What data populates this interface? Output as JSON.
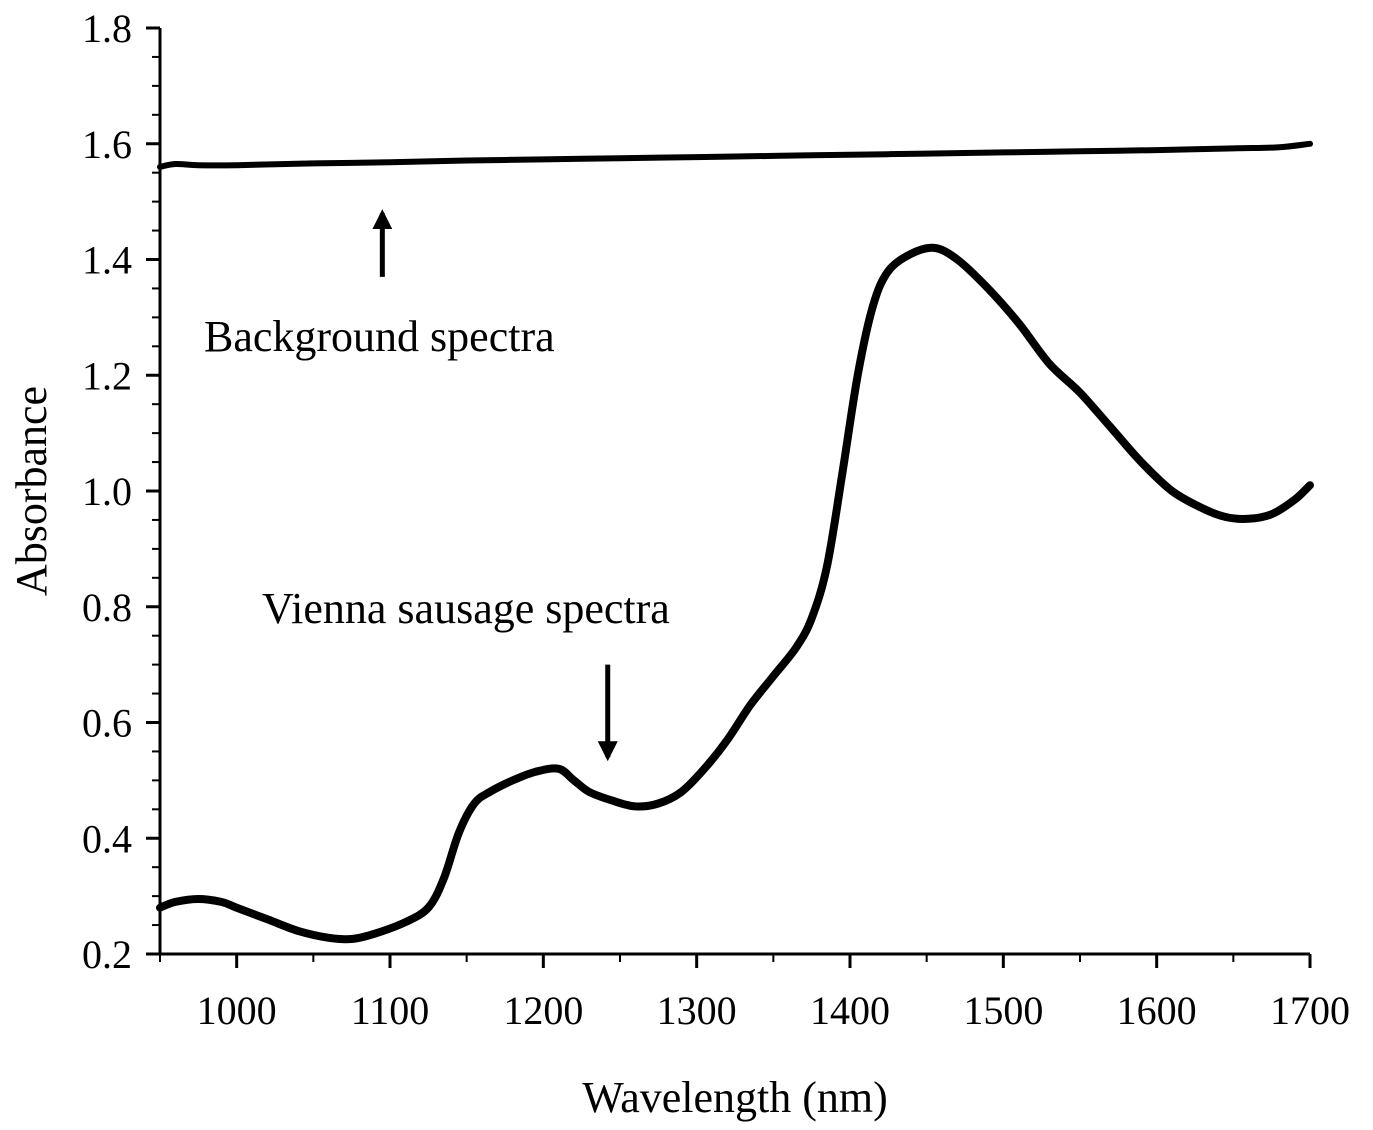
{
  "chart_data": {
    "type": "line",
    "title": "",
    "xlabel": "Wavelength (nm)",
    "ylabel": "Absorbance",
    "xlim": [
      950,
      1700
    ],
    "ylim": [
      0.2,
      1.8
    ],
    "grid": false,
    "x_ticks": [
      1000,
      1100,
      1200,
      1300,
      1400,
      1500,
      1600,
      1700
    ],
    "x_tick_labels": [
      "1000",
      "1100",
      "1200",
      "1300",
      "1400",
      "1500",
      "1600",
      "1700"
    ],
    "y_ticks": [
      0.2,
      0.4,
      0.6,
      0.8,
      1.0,
      1.2,
      1.4,
      1.6,
      1.8
    ],
    "y_tick_labels": [
      "0.2",
      "0.4",
      "0.6",
      "0.8",
      "1.0",
      "1.2",
      "1.4",
      "1.6",
      "1.8"
    ],
    "series": [
      {
        "name": "Background spectra",
        "color": "#000000",
        "x": [
          950,
          960,
          975,
          1000,
          1050,
          1100,
          1150,
          1200,
          1250,
          1300,
          1350,
          1400,
          1450,
          1500,
          1550,
          1600,
          1650,
          1680,
          1700
        ],
        "y": [
          1.56,
          1.565,
          1.563,
          1.563,
          1.566,
          1.568,
          1.571,
          1.573,
          1.575,
          1.577,
          1.579,
          1.581,
          1.583,
          1.585,
          1.587,
          1.589,
          1.592,
          1.594,
          1.6
        ]
      },
      {
        "name": "Vienna sausage spectra",
        "color": "#000000",
        "x": [
          950,
          960,
          975,
          990,
          1000,
          1020,
          1040,
          1060,
          1075,
          1090,
          1110,
          1125,
          1135,
          1145,
          1155,
          1165,
          1180,
          1195,
          1210,
          1220,
          1230,
          1245,
          1260,
          1275,
          1290,
          1305,
          1320,
          1335,
          1350,
          1365,
          1375,
          1385,
          1395,
          1405,
          1415,
          1425,
          1440,
          1455,
          1470,
          1490,
          1510,
          1530,
          1550,
          1570,
          1590,
          1610,
          1630,
          1645,
          1660,
          1675,
          1690,
          1700
        ],
        "y": [
          0.28,
          0.29,
          0.295,
          0.29,
          0.28,
          0.26,
          0.24,
          0.228,
          0.226,
          0.235,
          0.255,
          0.28,
          0.33,
          0.41,
          0.46,
          0.48,
          0.5,
          0.515,
          0.52,
          0.5,
          0.48,
          0.465,
          0.455,
          0.46,
          0.48,
          0.52,
          0.57,
          0.63,
          0.68,
          0.73,
          0.78,
          0.87,
          1.03,
          1.2,
          1.32,
          1.38,
          1.41,
          1.42,
          1.4,
          1.35,
          1.29,
          1.22,
          1.17,
          1.11,
          1.05,
          1.0,
          0.97,
          0.955,
          0.952,
          0.96,
          0.985,
          1.01
        ]
      }
    ],
    "annotations": [
      {
        "text": "Background spectra",
        "arrow_x": 1095,
        "arrow_from_y": 1.37,
        "arrow_to_y": 1.48
      },
      {
        "text": "Vienna sausage spectra",
        "arrow_x": 1242,
        "arrow_from_y": 0.7,
        "arrow_to_y": 0.54
      }
    ]
  }
}
